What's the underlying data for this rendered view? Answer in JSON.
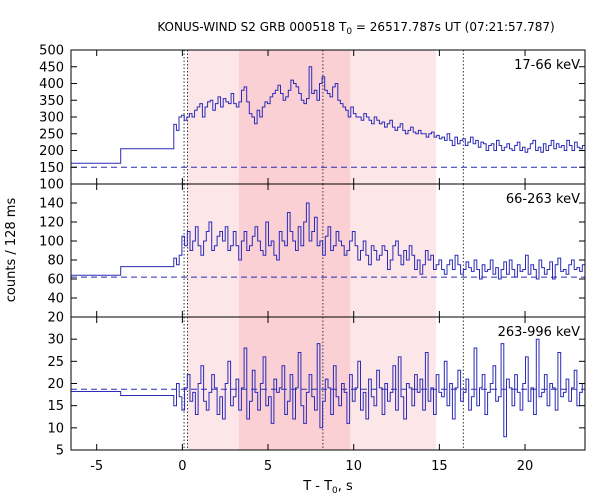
{
  "chart_data": {
    "type": "line",
    "title_main": "KONUS-WIND S2 GRB 000518 T",
    "title_sub": "0",
    "title_rest": " = 26517.787s UT (07:21:57.787)",
    "ylabel": "counts / 128 ms",
    "xlabel_main": "T - T",
    "xlabel_sub": "0",
    "xlabel_rest": ", s",
    "xlim": [
      -6.5,
      23.5
    ],
    "xticks": [
      -5,
      0,
      5,
      10,
      15,
      20
    ],
    "xtick_labels": [
      "-5",
      "0",
      "5",
      "10",
      "15",
      "20"
    ],
    "shaded_light": [
      0.3,
      14.8
    ],
    "shaded_dark": [
      3.3,
      9.8
    ],
    "vlines": [
      0.1,
      0.3,
      8.2,
      16.4
    ],
    "line_color": "#2b2bb8",
    "panels": [
      {
        "label": "17-66 keV",
        "ylim": [
          100,
          500
        ],
        "yticks": [
          100,
          150,
          200,
          250,
          300,
          350,
          400,
          450,
          500
        ],
        "ytick_labels": [
          "100",
          "150",
          "200",
          "250",
          "300",
          "350",
          "400",
          "450",
          "500"
        ],
        "background": 150,
        "pre_steps": [
          [
            -6.5,
            162
          ],
          [
            -3.6,
            205
          ],
          [
            -0.5,
            205
          ]
        ],
        "series": [
          278,
          260,
          300,
          305,
          290,
          300,
          310,
          300,
          320,
          330,
          340,
          300,
          330,
          345,
          350,
          320,
          340,
          360,
          330,
          355,
          345,
          340,
          370,
          340,
          330,
          345,
          380,
          390,
          345,
          310,
          300,
          280,
          320,
          300,
          330,
          345,
          340,
          360,
          370,
          380,
          395,
          370,
          350,
          360,
          380,
          410,
          400,
          390,
          370,
          350,
          340,
          355,
          450,
          370,
          380,
          350,
          400,
          420,
          380,
          370,
          360,
          390,
          400,
          350,
          340,
          330,
          320,
          300,
          330,
          310,
          300,
          300,
          290,
          310,
          300,
          290,
          280,
          300,
          290,
          280,
          285,
          270,
          280,
          290,
          270,
          260,
          270,
          280,
          260,
          250,
          260,
          270,
          255,
          250,
          260,
          250,
          250,
          240,
          250,
          255,
          240,
          245,
          235,
          240,
          230,
          250,
          230,
          215,
          240,
          220,
          230,
          235,
          215,
          225,
          240,
          220,
          230,
          210,
          225,
          220,
          200,
          215,
          220,
          200,
          230,
          215,
          200,
          210,
          220,
          205,
          200,
          215,
          225,
          200,
          210,
          195,
          205,
          220,
          230,
          200,
          210,
          195,
          220,
          200,
          215,
          230,
          205,
          220,
          210,
          215,
          200,
          230,
          215,
          200,
          225,
          210,
          205,
          215
        ]
      },
      {
        "label": "66-263 keV",
        "ylim": [
          20,
          160
        ],
        "yticks": [
          20,
          40,
          60,
          80,
          100,
          120,
          140
        ],
        "ytick_labels": [
          "20",
          "40",
          "60",
          "80",
          "100",
          "120",
          "140"
        ],
        "background": 62,
        "pre_steps": [
          [
            -6.5,
            64
          ],
          [
            -3.6,
            73
          ],
          [
            -0.5,
            73
          ]
        ],
        "series": [
          82,
          75,
          85,
          105,
          95,
          110,
          90,
          100,
          115,
          95,
          85,
          100,
          110,
          120,
          90,
          95,
          105,
          110,
          100,
          115,
          90,
          95,
          110,
          95,
          80,
          100,
          110,
          90,
          95,
          105,
          115,
          100,
          90,
          85,
          120,
          95,
          100,
          85,
          80,
          110,
          100,
          95,
          130,
          110,
          100,
          90,
          115,
          95,
          120,
          140,
          100,
          110,
          125,
          95,
          100,
          85,
          105,
          115,
          90,
          95,
          110,
          100,
          95,
          85,
          90,
          100,
          110,
          95,
          80,
          90,
          100,
          85,
          75,
          95,
          90,
          80,
          85,
          95,
          90,
          70,
          80,
          95,
          100,
          85,
          75,
          90,
          80,
          95,
          85,
          70,
          80,
          65,
          75,
          90,
          80,
          85,
          70,
          75,
          80,
          70,
          65,
          75,
          80,
          70,
          85,
          75,
          65,
          70,
          78,
          72,
          68,
          80,
          70,
          60,
          75,
          68,
          70,
          80,
          65,
          72,
          60,
          70,
          78,
          65,
          80,
          70,
          62,
          75,
          68,
          70,
          85,
          65,
          75,
          70,
          60,
          80,
          72,
          65,
          70,
          78,
          60,
          75,
          82,
          68,
          70,
          65,
          75,
          80,
          70,
          72,
          68,
          75
        ]
      },
      {
        "label": "263-996 keV",
        "ylim": [
          5,
          35
        ],
        "yticks": [
          5,
          10,
          15,
          20,
          25,
          30
        ],
        "ytick_labels": [
          "5",
          "10",
          "15",
          "20",
          "25",
          "30"
        ],
        "background": 18.7,
        "pre_steps": [
          [
            -6.5,
            18.2
          ],
          [
            -3.6,
            17.3
          ],
          [
            -0.5,
            17.3
          ]
        ],
        "series": [
          15,
          20,
          17,
          14,
          19,
          22,
          16,
          18,
          13,
          20,
          24,
          16,
          14,
          18,
          22,
          19,
          13,
          17,
          12,
          20,
          25,
          15,
          17,
          21,
          14,
          19,
          28,
          12,
          16,
          23,
          18,
          14,
          20,
          26,
          15,
          17,
          11,
          21,
          18,
          19,
          24,
          13,
          16,
          22,
          12,
          19,
          27,
          15,
          11,
          18,
          22,
          17,
          14,
          29,
          10,
          16,
          21,
          19,
          13,
          24,
          17,
          15,
          20,
          18,
          11,
          22,
          16,
          19,
          25,
          14,
          18,
          12,
          21,
          17,
          15,
          23,
          19,
          13,
          20,
          16,
          18,
          24,
          14,
          26,
          17,
          12,
          20,
          19,
          15,
          22,
          18,
          21,
          14,
          27,
          16,
          19,
          13,
          22,
          18,
          17,
          25,
          15,
          20,
          12,
          19,
          23,
          16,
          18,
          21,
          14,
          17,
          28,
          15,
          19,
          22,
          13,
          18,
          20,
          24,
          16,
          17,
          29,
          8,
          21,
          19,
          15,
          22,
          18,
          14,
          20,
          26,
          16,
          19,
          13,
          30,
          17,
          18,
          22,
          15,
          20,
          19,
          14,
          27,
          17,
          18,
          21,
          16,
          19,
          23,
          15,
          18,
          20
        ]
      }
    ]
  }
}
